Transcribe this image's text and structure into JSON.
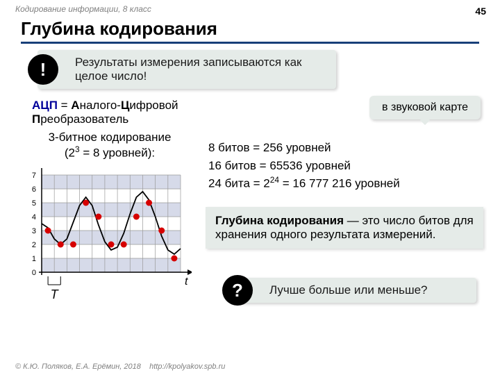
{
  "meta": {
    "subtitle": "Кодирование информации, 8 класс",
    "page_number": "45",
    "footer_left": "© К.Ю. Поляков, Е.А. Ерёмин, 2018",
    "footer_right": "http://kpolyakov.spb.ru"
  },
  "title": "Глубина кодирования",
  "callout1": {
    "icon": "!",
    "text": "Результаты измерения записываются как целое число!"
  },
  "adc": {
    "abbr": "АЦП",
    "eq": " = ",
    "word1_first": "А",
    "word1_rest": "налого-",
    "word2_first": "Ц",
    "word2_rest": "ифровой ",
    "word3_first": "П",
    "word3_rest": "реобразователь"
  },
  "soundcard": "в звуковой карте",
  "chart": {
    "label_line1": "3-битное кодирование",
    "label_line2_a": "(2",
    "label_line2_sup": "3",
    "label_line2_b": " = 8 уровней):",
    "y_ticks": [
      "0",
      "1",
      "2",
      "3",
      "4",
      "5",
      "6",
      "7"
    ],
    "t_label": "t",
    "T_label": "T",
    "bar_color": "#d6dae9",
    "grid_color": "#999999",
    "axis_color": "#000000",
    "dot_color": "#d60000",
    "curve_color": "#000000",
    "wave": [
      3.5,
      3.2,
      2.4,
      2.0,
      2.4,
      3.6,
      4.8,
      5.4,
      4.8,
      3.4,
      2.2,
      1.6,
      1.8,
      2.8,
      4.2,
      5.4,
      5.8,
      5.2,
      4.0,
      2.6,
      1.6,
      1.3,
      1.7
    ],
    "samples_x": [
      1,
      3,
      5,
      7,
      9,
      11,
      13,
      15,
      17,
      19,
      21
    ],
    "samples_y": [
      3,
      2,
      2,
      5,
      4,
      2,
      2,
      4,
      5,
      3,
      1
    ],
    "band_levels": [
      0,
      2,
      4,
      6
    ]
  },
  "bits": {
    "l1_a": "8 битов = 256 уровней",
    "l2_a": "16 битов = 65536 уровней",
    "l3_a": "24 бита = 2",
    "l3_sup": "24",
    "l3_b": " = 16 777 216 уровней"
  },
  "definition": {
    "term": "Глубина кодирования",
    "rest": " — это число битов для хранения одного результата измерений."
  },
  "callout2": {
    "icon": "?",
    "text": "Лучше больше или меньше?"
  },
  "colors": {
    "underline": "#183f79",
    "callout_bg": "#e5ebe8",
    "adc_abbr": "#000099"
  }
}
